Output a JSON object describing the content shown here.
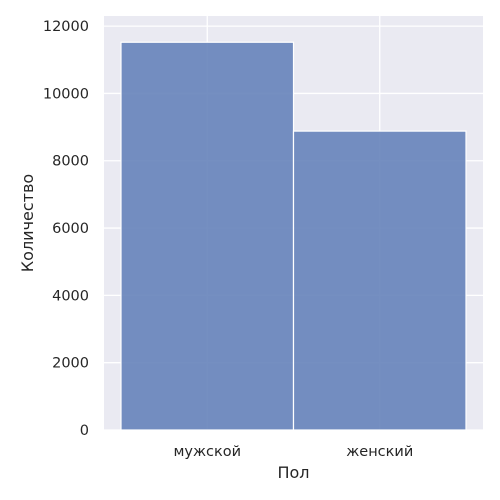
{
  "chart_data": {
    "type": "bar",
    "title": "",
    "xlabel": "Пол",
    "ylabel": "Количество",
    "categories": [
      "мужской",
      "женский"
    ],
    "values": [
      11520,
      8880
    ],
    "ylim": [
      0,
      12300
    ],
    "yticks": [
      0,
      2000,
      4000,
      6000,
      8000,
      10000,
      12000
    ],
    "grid": true,
    "colors": {
      "background": "#eaeaf2",
      "bar_fill": "#6683ba",
      "bar_edge": "#ffffff",
      "grid": "#ffffff",
      "text": "#262626"
    }
  }
}
